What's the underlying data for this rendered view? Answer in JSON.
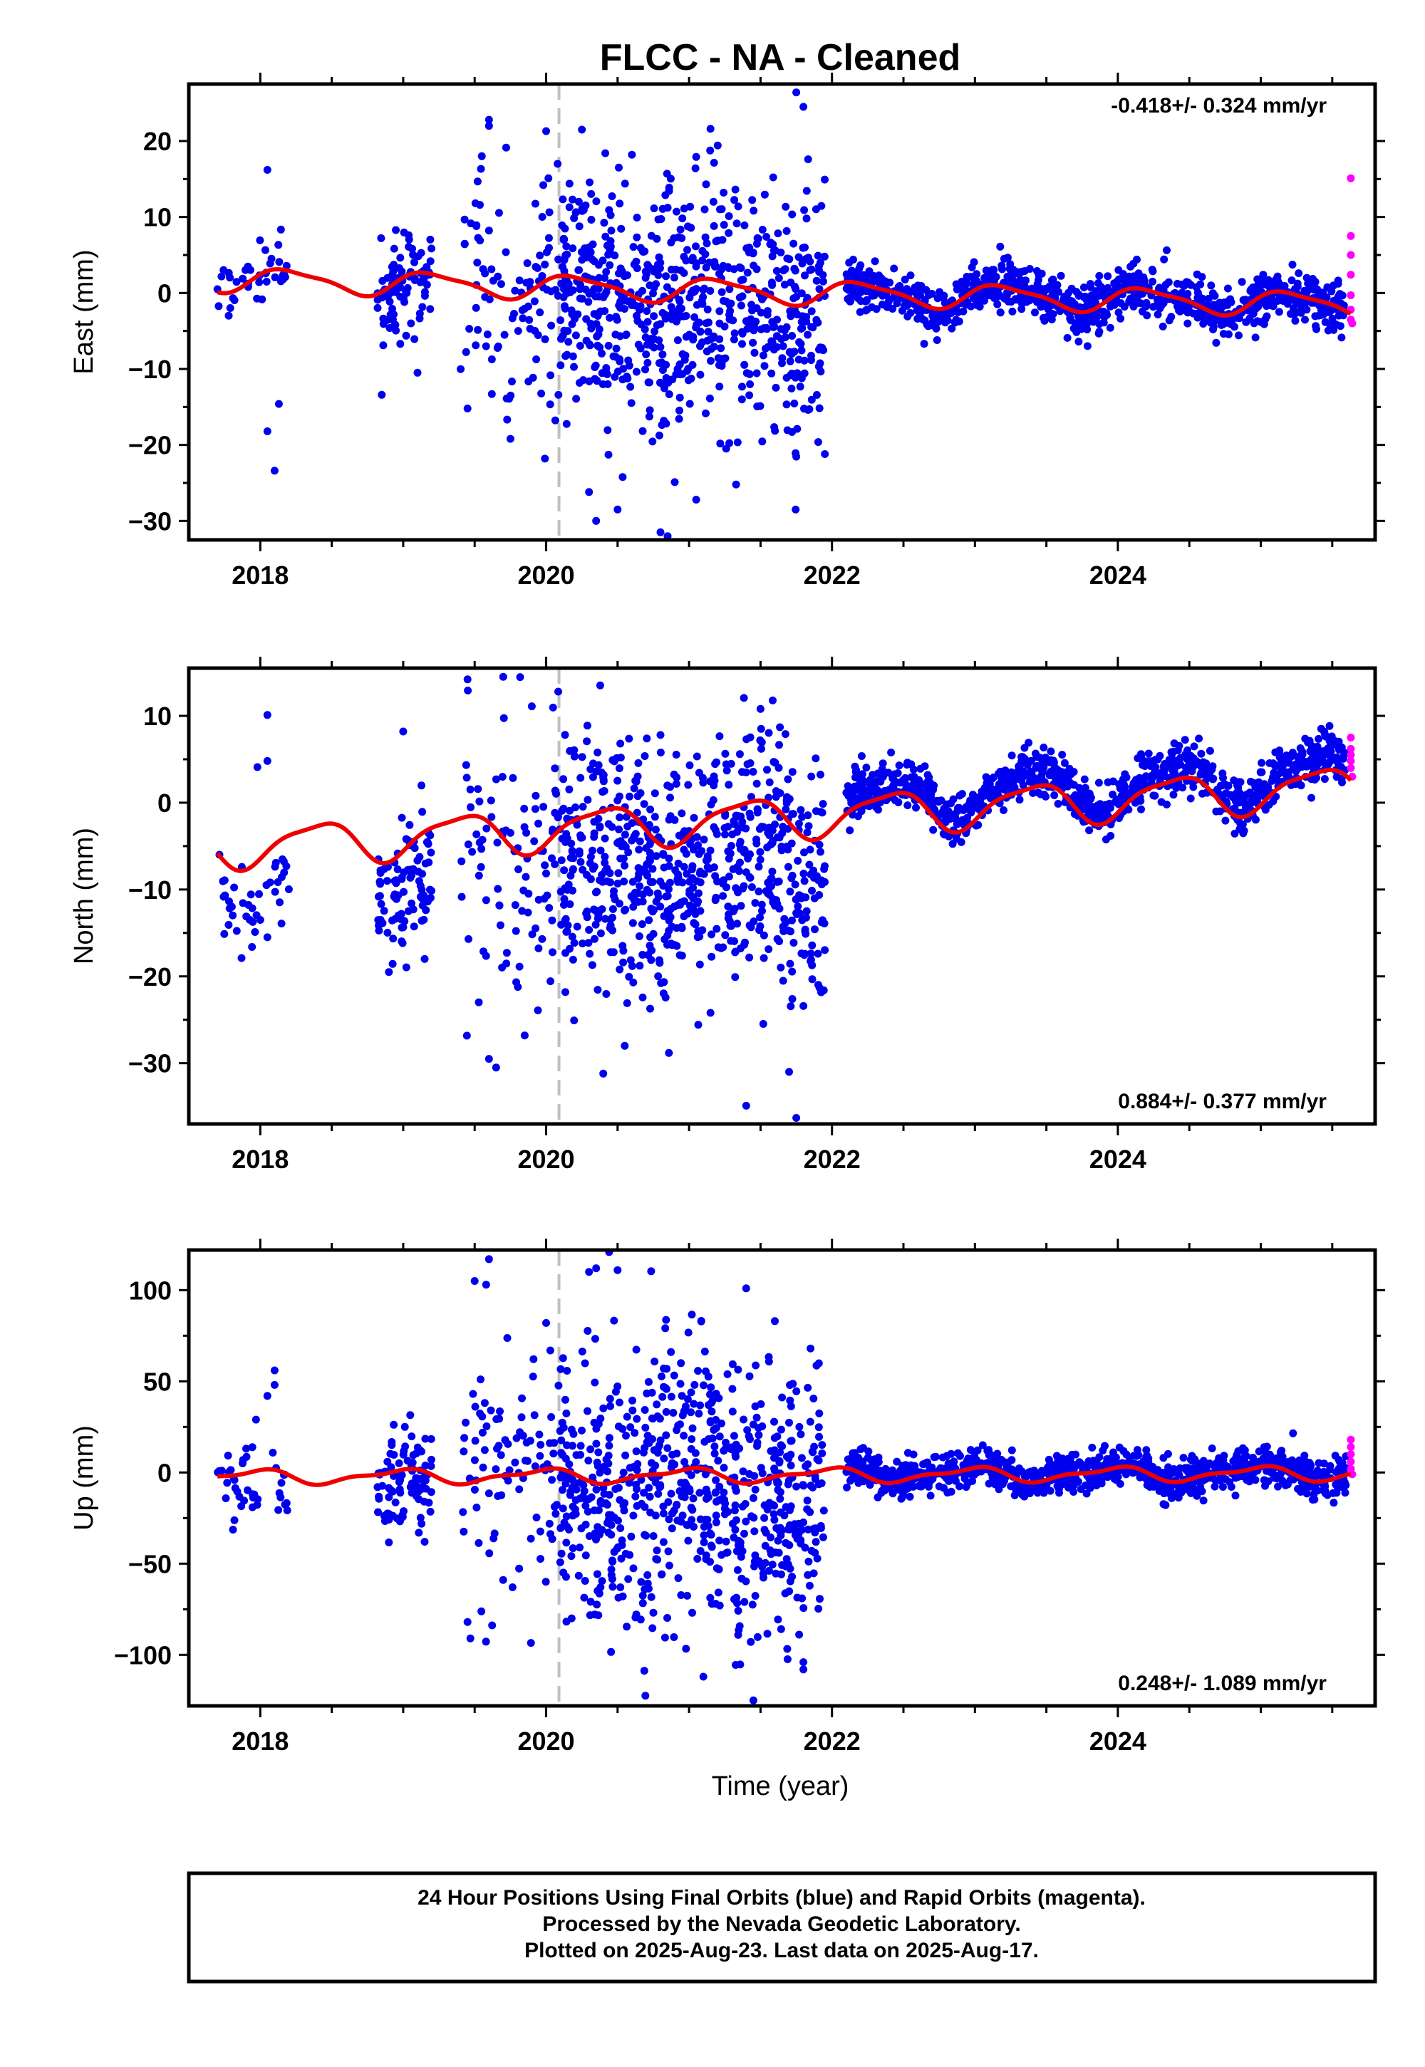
{
  "title": "FLCC  - NA - Cleaned",
  "x_axis_label": "Time (year)",
  "footer": {
    "line1": "24 Hour Positions Using Final Orbits (blue) and Rapid Orbits (magenta).",
    "line2": "Processed by the Nevada Geodetic Laboratory.",
    "line3": "Plotted on 2025-Aug-23. Last data on 2025-Aug-17."
  },
  "colors": {
    "final_orbits": "#0000ee",
    "rapid_orbits": "#ff00ff",
    "model_fit": "#ee0000",
    "event_line": "#c0c0c0",
    "frame": "#000000"
  },
  "chart_data": [
    {
      "type": "scatter",
      "panel": "east",
      "ylabel": "East (mm)",
      "rate_text": "-0.418+/- 0.324 mm/yr",
      "rate_position": "top-right",
      "xlim": [
        2017.5,
        2025.8
      ],
      "ylim": [
        -32.5,
        27.5
      ],
      "x_ticks": [
        2018,
        2020,
        2022,
        2024
      ],
      "x_tick_labels": [
        "2018",
        "2020",
        "2022",
        "2024"
      ],
      "y_ticks": [
        20,
        10,
        0,
        -10,
        -20,
        -30
      ],
      "y_tick_labels": [
        "20",
        "10",
        "0",
        "−10",
        "−20",
        "−30"
      ],
      "event_line_x": 2020.09,
      "series": [
        {
          "segments": [
            {
              "x0": 2017.7,
              "x1": 2018.2,
              "count": 40,
              "base": 0.3,
              "scatter": 1.8,
              "outliers": [
                [
                  2018.05,
                  16.2
                ],
                [
                  2018.05,
                  -18.2
                ],
                [
                  2018.1,
                  -23.4
                ],
                [
                  2018.13,
                  -14.6
                ]
              ]
            },
            {
              "x0": 2018.82,
              "x1": 2019.2,
              "count": 90,
              "base": -0.5,
              "scatter": 3.5,
              "outliers": [
                [
                  2018.85,
                  -13.4
                ],
                [
                  2019.1,
                  -10.5
                ]
              ]
            },
            {
              "x0": 2019.4,
              "x1": 2019.95,
              "count": 70,
              "base": -1,
              "scatter": 8,
              "outliers": [
                [
                  2019.6,
                  22.8
                ],
                [
                  2019.6,
                  22
                ],
                [
                  2019.55,
                  18
                ],
                [
                  2019.75,
                  -19.2
                ],
                [
                  2019.45,
                  -15.2
                ]
              ]
            },
            {
              "x0": 2019.95,
              "x1": 2020.1,
              "count": 25,
              "base": -2,
              "scatter": 8,
              "outliers": [
                [
                  2020.0,
                  21.3
                ],
                [
                  2019.98,
                  14.2
                ],
                [
                  2020.08,
                  17
                ]
              ]
            },
            {
              "x0": 2020.1,
              "x1": 2021.95,
              "count": 700,
              "base": -2,
              "scatter": 8,
              "outliers": [
                [
                  2020.25,
                  21.5
                ],
                [
                  2020.3,
                  -26.2
                ],
                [
                  2020.35,
                  -30
                ],
                [
                  2020.6,
                  18.2
                ],
                [
                  2020.8,
                  -31.5
                ],
                [
                  2020.85,
                  -32
                ],
                [
                  2021.15,
                  21.6
                ],
                [
                  2021.05,
                  -27.2
                ],
                [
                  2021.75,
                  26.4
                ],
                [
                  2021.8,
                  24.5
                ],
                [
                  2021.95,
                  -21.2
                ],
                [
                  2020.5,
                  -28.5
                ],
                [
                  2020.9,
                  -24.9
                ]
              ]
            }
          ]
        },
        {
          "segments": [
            {
              "x0": 2022.1,
              "x1": 2025.6,
              "count": 1000,
              "base": 0,
              "scatter": 1.6,
              "outliers": []
            }
          ]
        }
      ],
      "rapid_points": [
        [
          2025.63,
          15.1
        ],
        [
          2025.63,
          7.5
        ],
        [
          2025.63,
          5
        ],
        [
          2025.63,
          2.4
        ],
        [
          2025.63,
          -0.3
        ],
        [
          2025.63,
          -2.2
        ],
        [
          2025.63,
          -3.5
        ],
        [
          2025.64,
          -4
        ]
      ],
      "fit": {
        "offset": 0.2,
        "trend": -0.418,
        "ref_year": 2021.5,
        "annual_amp": 1.5,
        "annual_phase": 0.3,
        "semi_amp": 0.4,
        "semi_phase": 1.1
      }
    },
    {
      "type": "scatter",
      "panel": "north",
      "ylabel": "North (mm)",
      "rate_text": "0.884+/- 0.377 mm/yr",
      "rate_position": "bottom-right",
      "xlim": [
        2017.5,
        2025.8
      ],
      "ylim": [
        -37,
        15.5
      ],
      "x_ticks": [
        2018,
        2020,
        2022,
        2024
      ],
      "x_tick_labels": [
        "2018",
        "2020",
        "2022",
        "2024"
      ],
      "y_ticks": [
        10,
        0,
        -10,
        -20,
        -30
      ],
      "y_tick_labels": [
        "10",
        "0",
        "−10",
        "−20",
        "−30"
      ],
      "event_line_x": 2020.09,
      "series": [
        {
          "segments": [
            {
              "x0": 2017.7,
              "x1": 2018.2,
              "count": 40,
              "base": -5.5,
              "scatter": 2,
              "outliers": [
                [
                  2018.05,
                  10.1
                ],
                [
                  2018.05,
                  4.8
                ],
                [
                  2017.98,
                  4.1
                ],
                [
                  2018.0,
                  -13.5
                ],
                [
                  2018.05,
                  -15.5
                ]
              ]
            },
            {
              "x0": 2018.82,
              "x1": 2019.2,
              "count": 90,
              "base": -5,
              "scatter": 3.5,
              "outliers": [
                [
                  2019.0,
                  8.2
                ],
                [
                  2018.9,
                  -19.5
                ],
                [
                  2019.15,
                  -18
                ]
              ]
            },
            {
              "x0": 2019.4,
              "x1": 2019.95,
              "count": 70,
              "base": -4,
              "scatter": 9,
              "outliers": [
                [
                  2019.45,
                  14.2
                ],
                [
                  2019.7,
                  14.5
                ],
                [
                  2019.9,
                  11.1
                ],
                [
                  2019.6,
                  -29.5
                ],
                [
                  2019.65,
                  -30.5
                ],
                [
                  2019.85,
                  -26.8
                ]
              ]
            },
            {
              "x0": 2019.95,
              "x1": 2020.1,
              "count": 25,
              "base": -4,
              "scatter": 7,
              "outliers": []
            },
            {
              "x0": 2020.1,
              "x1": 2021.95,
              "count": 700,
              "base": -6,
              "scatter": 7,
              "outliers": [
                [
                  2020.4,
                  -31.2
                ],
                [
                  2020.55,
                  -28
                ],
                [
                  2021.15,
                  -24.2
                ],
                [
                  2021.4,
                  -34.9
                ],
                [
                  2021.7,
                  -31
                ],
                [
                  2021.75,
                  -36.3
                ],
                [
                  2021.5,
                  10.8
                ],
                [
                  2020.8,
                  7.8
                ]
              ]
            }
          ]
        },
        {
          "segments": [
            {
              "x0": 2022.1,
              "x1": 2025.6,
              "count": 1000,
              "base": 0.5,
              "scatter": 1.4,
              "outliers": []
            }
          ]
        }
      ],
      "rapid_points": [
        [
          2025.63,
          7.5
        ],
        [
          2025.63,
          6.2
        ],
        [
          2025.63,
          5.5
        ],
        [
          2025.63,
          4.8
        ],
        [
          2025.63,
          4
        ],
        [
          2025.64,
          3
        ]
      ],
      "fit": {
        "offset": -1.8,
        "trend": 0.884,
        "ref_year": 2021.5,
        "annual_amp": 2.3,
        "annual_phase": -0.9,
        "semi_amp": 0.6,
        "semi_phase": 0.4
      }
    },
    {
      "type": "scatter",
      "panel": "up",
      "ylabel": "Up (mm)",
      "rate_text": "0.248+/- 1.089 mm/yr",
      "rate_position": "bottom-right",
      "xlim": [
        2017.5,
        2025.8
      ],
      "ylim": [
        -128,
        122
      ],
      "x_ticks": [
        2018,
        2020,
        2022,
        2024
      ],
      "x_tick_labels": [
        "2018",
        "2020",
        "2022",
        "2024"
      ],
      "y_ticks": [
        100,
        50,
        0,
        -50,
        -100
      ],
      "y_tick_labels": [
        "100",
        "50",
        "0",
        "−50",
        "−100"
      ],
      "event_line_x": 2020.09,
      "series": [
        {
          "segments": [
            {
              "x0": 2017.7,
              "x1": 2018.2,
              "count": 40,
              "base": -8,
              "scatter": 10,
              "outliers": [
                [
                  2018.1,
                  56
                ],
                [
                  2018.1,
                  48
                ],
                [
                  2018.05,
                  42
                ],
                [
                  2017.97,
                  29
                ]
              ]
            },
            {
              "x0": 2018.82,
              "x1": 2019.2,
              "count": 90,
              "base": -5,
              "scatter": 12,
              "outliers": [
                [
                  2019.15,
                  -38
                ]
              ]
            },
            {
              "x0": 2019.4,
              "x1": 2019.95,
              "count": 70,
              "base": 0,
              "scatter": 45,
              "outliers": [
                [
                  2019.6,
                  117
                ],
                [
                  2019.5,
                  105
                ],
                [
                  2019.58,
                  103
                ],
                [
                  2019.45,
                  -82
                ],
                [
                  2019.47,
                  -91
                ]
              ]
            },
            {
              "x0": 2019.95,
              "x1": 2020.1,
              "count": 25,
              "base": -10,
              "scatter": 35,
              "outliers": [
                [
                  2020.0,
                  82
                ]
              ]
            },
            {
              "x0": 2020.1,
              "x1": 2021.95,
              "count": 700,
              "base": -10,
              "scatter": 38,
              "outliers": [
                [
                  2020.3,
                  110
                ],
                [
                  2020.35,
                  112
                ],
                [
                  2020.5,
                  111
                ],
                [
                  2021.1,
                  -112
                ],
                [
                  2021.45,
                  -125
                ],
                [
                  2021.8,
                  -108
                ],
                [
                  2021.8,
                  -104
                ],
                [
                  2021.4,
                  101
                ],
                [
                  2021.6,
                  83
                ],
                [
                  2021.85,
                  68
                ]
              ]
            }
          ]
        },
        {
          "segments": [
            {
              "x0": 2022.1,
              "x1": 2025.6,
              "count": 1000,
              "base": 0,
              "scatter": 5,
              "outliers": []
            }
          ]
        }
      ],
      "rapid_points": [
        [
          2025.63,
          18
        ],
        [
          2025.63,
          14
        ],
        [
          2025.63,
          10
        ],
        [
          2025.63,
          6
        ],
        [
          2025.63,
          2
        ],
        [
          2025.64,
          -1
        ]
      ],
      "fit": {
        "offset": -1.5,
        "trend": 0.248,
        "ref_year": 2021.5,
        "annual_amp": 3.5,
        "annual_phase": 1.8,
        "semi_amp": 1.5,
        "semi_phase": 0.2
      }
    }
  ]
}
